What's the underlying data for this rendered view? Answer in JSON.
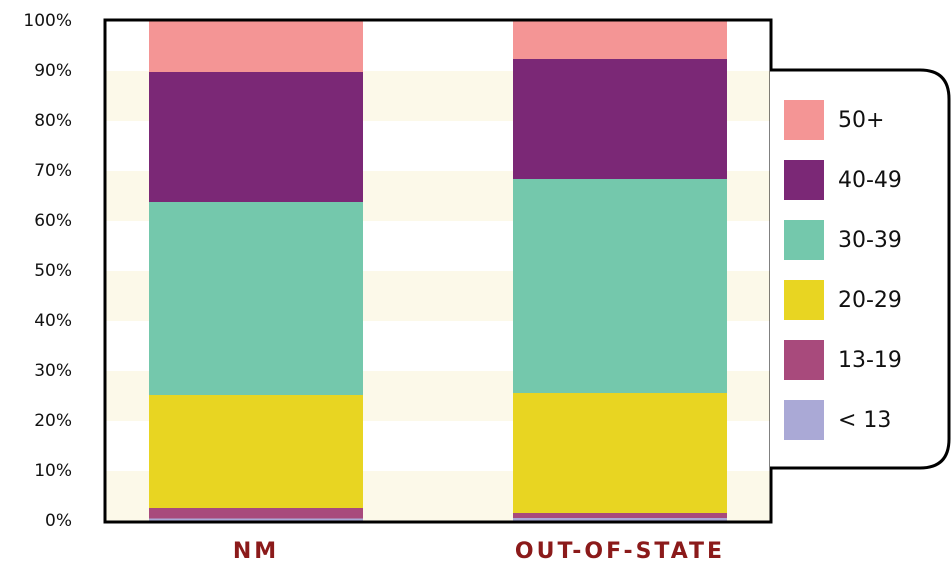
{
  "chart_data": {
    "type": "stacked_bar",
    "categories": [
      "NM",
      "OUT-OF-STATE"
    ],
    "series": [
      {
        "name": "< 13",
        "color": "#aaa9d6",
        "values": [
          0.5,
          0.6
        ]
      },
      {
        "name": "13-19",
        "color": "#a84a7c",
        "values": [
          2.1,
          1.0
        ]
      },
      {
        "name": "20-29",
        "color": "#e8d522",
        "values": [
          22.6,
          24.0
        ]
      },
      {
        "name": "30-39",
        "color": "#74c8ac",
        "values": [
          38.6,
          42.8
        ]
      },
      {
        "name": "40-49",
        "color": "#7b2876",
        "values": [
          26.0,
          24.0
        ]
      },
      {
        "name": "50+",
        "color": "#f49595",
        "values": [
          10.2,
          7.6
        ]
      }
    ],
    "ylim": [
      0,
      100
    ],
    "yticks": [
      {
        "value": 0,
        "label": "0%"
      },
      {
        "value": 10,
        "label": "10%"
      },
      {
        "value": 20,
        "label": "20%"
      },
      {
        "value": 30,
        "label": "30%"
      },
      {
        "value": 40,
        "label": "40%"
      },
      {
        "value": 50,
        "label": "50%"
      },
      {
        "value": 60,
        "label": "60%"
      },
      {
        "value": 70,
        "label": "70%"
      },
      {
        "value": 80,
        "label": "80%"
      },
      {
        "value": 90,
        "label": "90%"
      },
      {
        "value": 100,
        "label": "100%"
      }
    ],
    "legend": "right"
  }
}
